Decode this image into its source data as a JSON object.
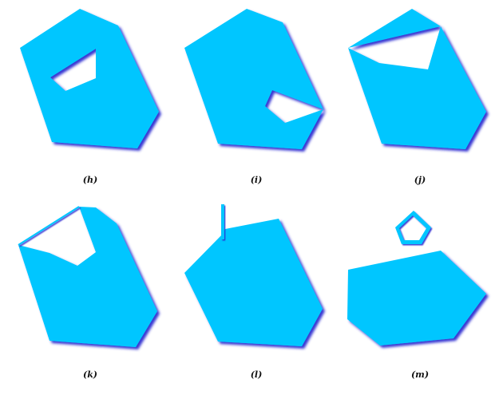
{
  "figure": {
    "description_type": "polygon-configurations",
    "fill_color": "#00C6FF",
    "shadow_color": "#2B2BD0",
    "background": "#FFFFFF"
  },
  "panels": [
    {
      "id": "h",
      "caption": "(h)",
      "case": "polygon-with-interior-hole"
    },
    {
      "id": "i",
      "caption": "(i)",
      "case": "hole-touching-boundary-vertex"
    },
    {
      "id": "j",
      "caption": "(j)",
      "case": "notch-touching-two-edges"
    },
    {
      "id": "k",
      "caption": "(k)",
      "case": "notch-with-outline-edge"
    },
    {
      "id": "l",
      "caption": "(l)",
      "case": "polygon-with-dangling-segment"
    },
    {
      "id": "m",
      "caption": "(m)",
      "case": "polygon-with-separate-ring"
    }
  ]
}
